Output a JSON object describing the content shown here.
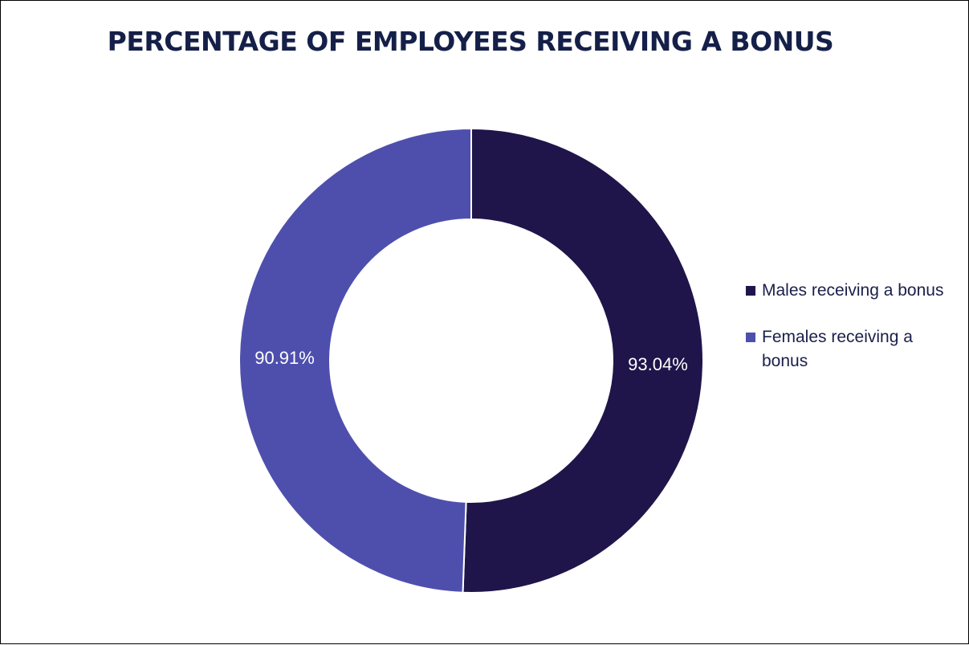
{
  "colors": {
    "title": "#152049",
    "males": "#1f154a",
    "females": "#4e4fad",
    "legend_text": "#1a1f4a",
    "separator": "#ffffff"
  },
  "chart_data": {
    "type": "pie",
    "variant": "donut",
    "title": "PERCENTAGE OF EMPLOYEES RECEIVING A BONUS",
    "categories": [
      "Males receiving a bonus",
      "Females receiving a bonus"
    ],
    "values": [
      93.04,
      90.91
    ],
    "data_labels": [
      "93.04%",
      "90.91%"
    ],
    "legend_position": "right",
    "start": "top, clockwise"
  }
}
